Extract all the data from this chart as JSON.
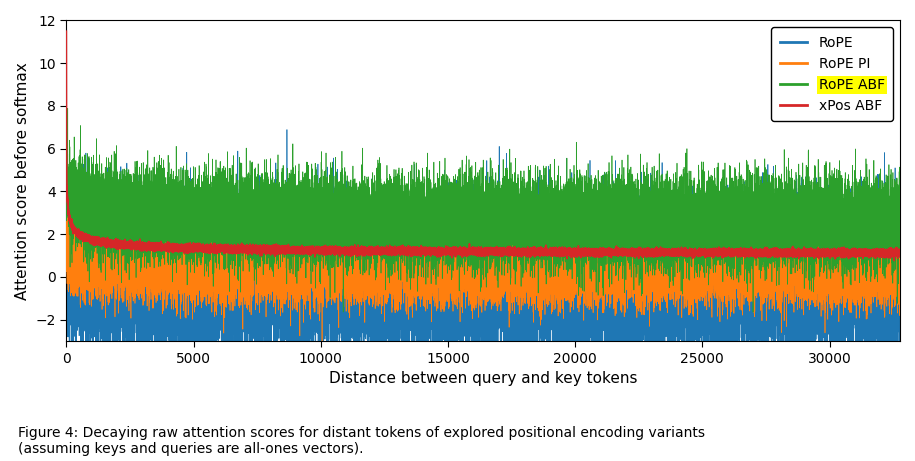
{
  "xlabel": "Distance between query and key tokens",
  "ylabel": "Attention score before softmax",
  "xlim": [
    0,
    32768
  ],
  "ylim": [
    -3,
    12
  ],
  "yticks": [
    -2,
    0,
    2,
    4,
    6,
    8,
    10,
    12
  ],
  "xticks": [
    0,
    5000,
    10000,
    15000,
    20000,
    25000,
    30000
  ],
  "legend_labels": [
    "RoPE",
    "RoPE PI",
    "RoPE ABF",
    "xPos ABF"
  ],
  "legend_colors": [
    "#1f77b4",
    "#ff7f0e",
    "#2ca02c",
    "#d62728"
  ],
  "caption_line1": "Figure 4: Decaying raw attention scores for distant tokens of explored positional encoding variants",
  "caption_line2": "(assuming keys and queries are all-ones vectors).",
  "n_points": 32768,
  "seed": 42,
  "background_color": "#ffffff",
  "figsize": [
    9.15,
    4.61
  ],
  "dpi": 100
}
